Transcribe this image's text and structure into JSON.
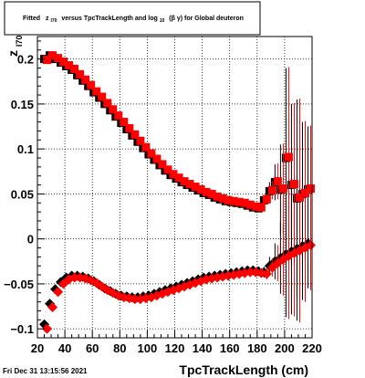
{
  "title": {
    "prefix": "Fitted",
    "z": "z",
    "z_sub": "I70",
    "middle": "versus TpcTrackLength and log",
    "log_sub": "10",
    "suffix": "(β γ) for Global deuteron"
  },
  "date_text": "Fri Dec 31 13:15:56 2021",
  "colors": {
    "series1": "#000000",
    "series2": "#ff0000",
    "frame": "#000000"
  },
  "chart_data": {
    "type": "scatter",
    "xlabel": "TpcTrackLength (cm)",
    "ylabel": "z",
    "ylabel_sub": "I70",
    "xlim": [
      20,
      220
    ],
    "ylim": [
      -0.11,
      0.225
    ],
    "xticks": [
      20,
      40,
      60,
      80,
      100,
      120,
      140,
      160,
      180,
      200,
      220
    ],
    "yticks": [
      -0.1,
      -0.05,
      0,
      0.05,
      0.1,
      0.15,
      0.2
    ],
    "ytick_labels": [
      "−0.1",
      "−0.05",
      "0",
      "0.05",
      "0.1",
      "0.15",
      "0.2"
    ],
    "grid": true,
    "x": [
      26,
      30,
      34,
      38,
      42,
      46,
      50,
      54,
      58,
      62,
      66,
      70,
      74,
      78,
      82,
      86,
      90,
      94,
      98,
      102,
      106,
      110,
      114,
      118,
      122,
      126,
      130,
      134,
      138,
      142,
      146,
      150,
      154,
      158,
      162,
      166,
      170,
      174,
      178,
      182,
      186,
      190,
      194,
      198,
      202,
      206,
      210,
      214,
      218
    ],
    "series": [
      {
        "marker": "square",
        "color": "#000000",
        "mean": [
          0.2,
          0.204,
          0.2,
          0.196,
          0.192,
          0.188,
          0.182,
          0.176,
          0.17,
          0.163,
          0.157,
          0.15,
          0.143,
          0.136,
          0.129,
          0.122,
          0.115,
          0.108,
          0.101,
          0.094,
          0.088,
          0.082,
          0.076,
          0.071,
          0.067,
          0.063,
          0.06,
          0.057,
          0.054,
          0.051,
          0.049,
          0.046,
          0.044,
          0.042,
          0.041,
          0.04,
          0.039,
          0.037,
          0.035,
          0.034,
          0.043,
          0.053,
          0.063,
          0.055,
          0.09,
          0.06,
          0.045,
          0.05,
          0.055
        ],
        "err": [
          0.003,
          0.003,
          0.003,
          0.003,
          0.002,
          0.002,
          0.002,
          0.002,
          0.002,
          0.002,
          0.002,
          0.002,
          0.002,
          0.002,
          0.002,
          0.002,
          0.002,
          0.002,
          0.002,
          0.002,
          0.002,
          0.002,
          0.002,
          0.002,
          0.002,
          0.002,
          0.002,
          0.002,
          0.002,
          0.002,
          0.002,
          0.002,
          0.002,
          0.002,
          0.002,
          0.002,
          0.002,
          0.002,
          0.003,
          0.004,
          0.006,
          0.01,
          0.02,
          0.05,
          0.1,
          0.09,
          0.11,
          0.08,
          0.07
        ],
        "sigma": [
          -0.095,
          -0.072,
          -0.056,
          -0.048,
          -0.043,
          -0.041,
          -0.041,
          -0.042,
          -0.044,
          -0.047,
          -0.051,
          -0.055,
          -0.058,
          -0.061,
          -0.063,
          -0.064,
          -0.065,
          -0.065,
          -0.064,
          -0.063,
          -0.061,
          -0.059,
          -0.057,
          -0.055,
          -0.053,
          -0.051,
          -0.049,
          -0.047,
          -0.045,
          -0.043,
          -0.042,
          -0.041,
          -0.04,
          -0.039,
          -0.038,
          -0.037,
          -0.036,
          -0.035,
          -0.035,
          -0.036,
          -0.037,
          -0.03,
          -0.025,
          -0.021,
          -0.017,
          -0.014,
          -0.011,
          -0.008,
          -0.005
        ],
        "sigma_err": [
          0.003,
          0.003,
          0.002,
          0.002,
          0.002,
          0.002,
          0.002,
          0.002,
          0.002,
          0.002,
          0.002,
          0.002,
          0.002,
          0.002,
          0.002,
          0.002,
          0.002,
          0.002,
          0.002,
          0.002,
          0.002,
          0.002,
          0.002,
          0.002,
          0.002,
          0.002,
          0.002,
          0.002,
          0.002,
          0.002,
          0.002,
          0.002,
          0.002,
          0.002,
          0.002,
          0.002,
          0.002,
          0.002,
          0.003,
          0.004,
          0.006,
          0.01,
          0.02,
          0.04,
          0.07,
          0.07,
          0.08,
          0.06,
          0.05
        ]
      },
      {
        "marker": "square",
        "color": "#ff0000",
        "mean": [
          0.199,
          0.204,
          0.201,
          0.197,
          0.193,
          0.189,
          0.183,
          0.177,
          0.171,
          0.164,
          0.158,
          0.151,
          0.144,
          0.137,
          0.13,
          0.123,
          0.116,
          0.109,
          0.102,
          0.095,
          0.089,
          0.083,
          0.077,
          0.072,
          0.068,
          0.064,
          0.061,
          0.058,
          0.055,
          0.052,
          0.05,
          0.047,
          0.045,
          0.043,
          0.042,
          0.041,
          0.04,
          0.038,
          0.036,
          0.035,
          0.044,
          0.054,
          0.064,
          0.056,
          0.091,
          0.061,
          0.046,
          0.051,
          0.056
        ],
        "err": [
          0.003,
          0.003,
          0.003,
          0.003,
          0.002,
          0.002,
          0.002,
          0.002,
          0.002,
          0.002,
          0.002,
          0.002,
          0.002,
          0.002,
          0.002,
          0.002,
          0.002,
          0.002,
          0.002,
          0.002,
          0.002,
          0.002,
          0.002,
          0.002,
          0.002,
          0.002,
          0.002,
          0.002,
          0.002,
          0.002,
          0.002,
          0.002,
          0.002,
          0.002,
          0.002,
          0.002,
          0.002,
          0.002,
          0.003,
          0.004,
          0.006,
          0.01,
          0.02,
          0.05,
          0.1,
          0.09,
          0.11,
          0.08,
          0.07
        ],
        "sigma": [
          -0.1,
          -0.076,
          -0.059,
          -0.05,
          -0.045,
          -0.043,
          -0.043,
          -0.044,
          -0.046,
          -0.049,
          -0.053,
          -0.057,
          -0.06,
          -0.063,
          -0.065,
          -0.066,
          -0.067,
          -0.067,
          -0.066,
          -0.065,
          -0.063,
          -0.061,
          -0.059,
          -0.057,
          -0.055,
          -0.053,
          -0.051,
          -0.049,
          -0.047,
          -0.045,
          -0.044,
          -0.043,
          -0.042,
          -0.041,
          -0.04,
          -0.039,
          -0.038,
          -0.037,
          -0.037,
          -0.038,
          -0.039,
          -0.032,
          -0.027,
          -0.023,
          -0.019,
          -0.016,
          -0.013,
          -0.01,
          -0.007
        ],
        "sigma_err": [
          0.003,
          0.003,
          0.002,
          0.002,
          0.002,
          0.002,
          0.002,
          0.002,
          0.002,
          0.002,
          0.002,
          0.002,
          0.002,
          0.002,
          0.002,
          0.002,
          0.002,
          0.002,
          0.002,
          0.002,
          0.002,
          0.002,
          0.002,
          0.002,
          0.002,
          0.002,
          0.002,
          0.002,
          0.002,
          0.002,
          0.002,
          0.002,
          0.002,
          0.002,
          0.002,
          0.002,
          0.002,
          0.002,
          0.003,
          0.004,
          0.006,
          0.01,
          0.02,
          0.04,
          0.07,
          0.07,
          0.08,
          0.06,
          0.05
        ]
      }
    ]
  }
}
